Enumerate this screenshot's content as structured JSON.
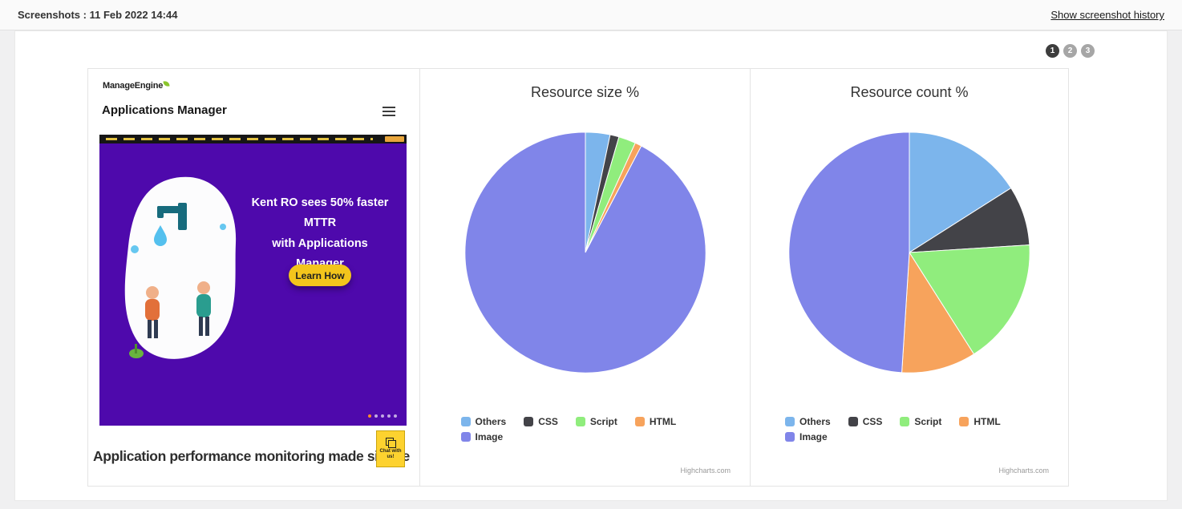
{
  "header": {
    "title": "Screenshots : 11 Feb 2022 14:44",
    "history_link": "Show screenshot history"
  },
  "pagination": [
    "1",
    "2",
    "3"
  ],
  "site_preview": {
    "brand": "ManageEngine",
    "app_title": "Applications Manager",
    "banner_line1": "Kent RO sees 50% faster MTTR",
    "banner_line2": "with Applications Manager",
    "banner_cta": "Learn How",
    "tagline": "Application performance monitoring made simple",
    "chat_badge": "Chat with us!"
  },
  "chart_data": [
    {
      "type": "pie",
      "title": "Resource size %",
      "labels": [
        "Others",
        "CSS",
        "Script",
        "HTML",
        "Image"
      ],
      "values": [
        3.3,
        1.2,
        2.3,
        0.9,
        92.3
      ],
      "colors": [
        "#7cb5ec",
        "#434348",
        "#90ed7d",
        "#f7a35c",
        "#8085e9"
      ],
      "legend_position": "bottom",
      "credit": "Highcharts.com"
    },
    {
      "type": "pie",
      "title": "Resource count %",
      "labels": [
        "Others",
        "CSS",
        "Script",
        "HTML",
        "Image"
      ],
      "values": [
        16,
        8,
        17,
        10,
        49
      ],
      "colors": [
        "#7cb5ec",
        "#434348",
        "#90ed7d",
        "#f7a35c",
        "#8085e9"
      ],
      "legend_position": "bottom",
      "credit": "Highcharts.com"
    }
  ],
  "colors": {
    "banner_bg": "#4e09ac",
    "cta_bg": "#f3c51c",
    "active_page": "#3d3d3d",
    "inactive_page": "#a6a6a6"
  }
}
